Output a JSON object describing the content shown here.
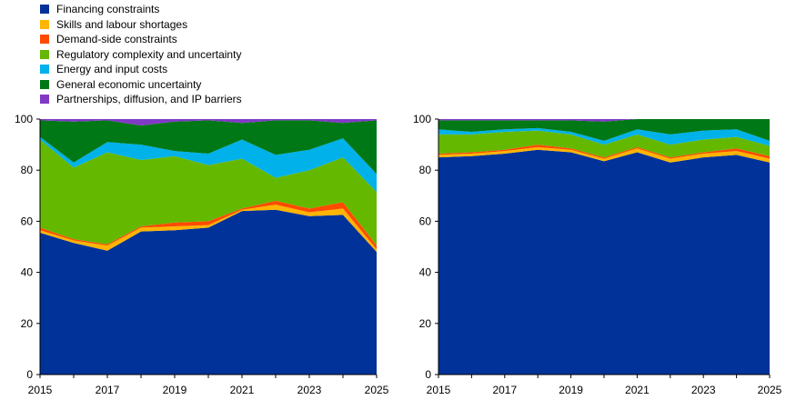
{
  "legend": [
    {
      "name": "Financing constraints",
      "color": "#003299"
    },
    {
      "name": "Skills and labour shortages",
      "color": "#FFB400"
    },
    {
      "name": "Demand-side constraints",
      "color": "#FF4B00"
    },
    {
      "name": "Regulatory complexity and uncertainty",
      "color": "#65B800"
    },
    {
      "name": "Energy and input costs",
      "color": "#00B1EA"
    },
    {
      "name": "General economic uncertainty",
      "color": "#007816"
    },
    {
      "name": "Partnerships, diffusion, and IP barriers",
      "color": "#8139C6"
    }
  ],
  "chart_data": [
    {
      "type": "area",
      "stacked": true,
      "x": [
        2015,
        2016,
        2017,
        2018,
        2019,
        2020,
        2021,
        2022,
        2023,
        2024,
        2025
      ],
      "xticks": [
        2015,
        2017,
        2019,
        2021,
        2023,
        2025
      ],
      "ylim": [
        0,
        100
      ],
      "yticks": [
        0,
        20,
        40,
        60,
        80,
        100
      ],
      "series": [
        {
          "name": "Financing constraints",
          "values": [
            55.5,
            51.5,
            48.5,
            56,
            56.5,
            57.5,
            64,
            64.5,
            62,
            62.5,
            48
          ]
        },
        {
          "name": "Skills and labour shortages",
          "values": [
            1,
            1,
            2,
            1.5,
            1.5,
            1,
            0.5,
            2,
            1.5,
            2.5,
            1
          ]
        },
        {
          "name": "Demand-side constraints",
          "values": [
            1,
            0.5,
            0.5,
            0.5,
            1.5,
            1.5,
            0.5,
            1.5,
            1.5,
            2.5,
            1.5
          ]
        },
        {
          "name": "Regulatory complexity and uncertainty",
          "values": [
            34.5,
            28,
            36,
            26,
            26,
            22,
            19.5,
            9,
            15,
            17.5,
            21
          ]
        },
        {
          "name": "Energy and input costs",
          "values": [
            1,
            2,
            4,
            6,
            2,
            4.5,
            7.5,
            9,
            8,
            7.5,
            7
          ]
        },
        {
          "name": "General economic uncertainty",
          "values": [
            6.5,
            16,
            8.5,
            7.5,
            11.5,
            13,
            6.5,
            13.5,
            11.5,
            6,
            21
          ]
        },
        {
          "name": "Partnerships, diffusion, and IP barriers",
          "values": [
            0.5,
            1,
            0.5,
            2.5,
            1,
            0.5,
            1.5,
            0.5,
            0.5,
            1.5,
            0.5
          ]
        }
      ]
    },
    {
      "type": "area",
      "stacked": true,
      "x": [
        2015,
        2016,
        2017,
        2018,
        2019,
        2020,
        2021,
        2022,
        2023,
        2024,
        2025
      ],
      "xticks": [
        2015,
        2017,
        2019,
        2021,
        2023,
        2025
      ],
      "ylim": [
        0,
        100
      ],
      "yticks": [
        0,
        20,
        40,
        60,
        80,
        100
      ],
      "series": [
        {
          "name": "Financing constraints",
          "values": [
            85,
            85.5,
            86.5,
            88,
            87,
            83.5,
            87,
            83,
            85,
            86,
            83
          ]
        },
        {
          "name": "Skills and labour shortages",
          "values": [
            1,
            1,
            1,
            1,
            1,
            1,
            1.5,
            1.5,
            1.5,
            1.5,
            1.5
          ]
        },
        {
          "name": "Demand-side constraints",
          "values": [
            0.5,
            0.5,
            0.5,
            1,
            0.5,
            0.5,
            0.5,
            0.5,
            0.5,
            1,
            1
          ]
        },
        {
          "name": "Regulatory complexity and uncertainty",
          "values": [
            7.5,
            7,
            7,
            5.5,
            5.5,
            5,
            5,
            5,
            5,
            4.5,
            4
          ]
        },
        {
          "name": "Energy and input costs",
          "values": [
            2,
            1,
            1,
            1,
            1,
            1.5,
            2,
            4,
            3.5,
            3,
            2
          ]
        },
        {
          "name": "General economic uncertainty",
          "values": [
            3.5,
            4.5,
            3.5,
            3,
            4.5,
            7.5,
            4,
            6,
            4.5,
            4,
            8.5
          ]
        },
        {
          "name": "Partnerships, diffusion, and IP barriers",
          "values": [
            0.5,
            0.5,
            0.5,
            0.5,
            0.5,
            1,
            0,
            0,
            0,
            0,
            0
          ]
        }
      ]
    }
  ]
}
